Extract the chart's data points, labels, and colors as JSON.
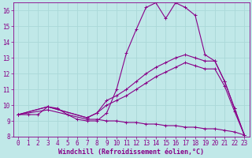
{
  "xlabel": "Windchill (Refroidissement éolien,°C)",
  "xlim": [
    -0.5,
    23.5
  ],
  "ylim": [
    8,
    16.5
  ],
  "xticks": [
    0,
    1,
    2,
    3,
    4,
    5,
    6,
    7,
    8,
    9,
    10,
    11,
    12,
    13,
    14,
    15,
    16,
    17,
    18,
    19,
    20,
    21,
    22,
    23
  ],
  "yticks": [
    8,
    9,
    10,
    11,
    12,
    13,
    14,
    15,
    16
  ],
  "bg_color": "#c0e8e8",
  "line_color": "#880088",
  "grid_color": "#aad8d8",
  "lines": [
    {
      "x": [
        0,
        1,
        2,
        3,
        4,
        5,
        6,
        7,
        8,
        9,
        10,
        11,
        12,
        13,
        14,
        15,
        16,
        17,
        18,
        19,
        20,
        21,
        22,
        23
      ],
      "y": [
        9.4,
        9.4,
        9.4,
        9.9,
        9.8,
        9.4,
        9.1,
        9.0,
        9.0,
        9.5,
        11.0,
        13.3,
        14.8,
        16.2,
        16.5,
        15.5,
        16.5,
        16.2,
        15.7,
        13.2,
        12.8,
        11.5,
        9.8,
        8.1
      ]
    },
    {
      "x": [
        0,
        3,
        7,
        8,
        9,
        10,
        11,
        12,
        13,
        14,
        15,
        16,
        17,
        18,
        19,
        20,
        21,
        22,
        23
      ],
      "y": [
        9.4,
        9.9,
        9.2,
        9.5,
        10.3,
        10.6,
        11.0,
        11.5,
        12.0,
        12.4,
        12.7,
        13.0,
        13.2,
        13.0,
        12.8,
        12.8,
        11.5,
        9.8,
        8.1
      ]
    },
    {
      "x": [
        0,
        3,
        7,
        8,
        9,
        10,
        11,
        12,
        13,
        14,
        15,
        16,
        17,
        18,
        19,
        20,
        21,
        22,
        23
      ],
      "y": [
        9.4,
        9.9,
        9.2,
        9.5,
        10.0,
        10.3,
        10.6,
        11.0,
        11.4,
        11.8,
        12.1,
        12.4,
        12.7,
        12.5,
        12.3,
        12.3,
        11.2,
        9.6,
        8.1
      ]
    },
    {
      "x": [
        0,
        3,
        7,
        8,
        9,
        10,
        11,
        12,
        13,
        14,
        15,
        16,
        17,
        18,
        19,
        20,
        21,
        22,
        23
      ],
      "y": [
        9.4,
        9.7,
        9.1,
        9.1,
        9.0,
        9.0,
        8.9,
        8.9,
        8.8,
        8.8,
        8.7,
        8.7,
        8.6,
        8.6,
        8.5,
        8.5,
        8.4,
        8.3,
        8.1
      ]
    }
  ],
  "font_size": 5.5,
  "tick_font_size": 5.5,
  "xlabel_font_size": 6,
  "linewidth": 0.8,
  "markersize": 2.5
}
